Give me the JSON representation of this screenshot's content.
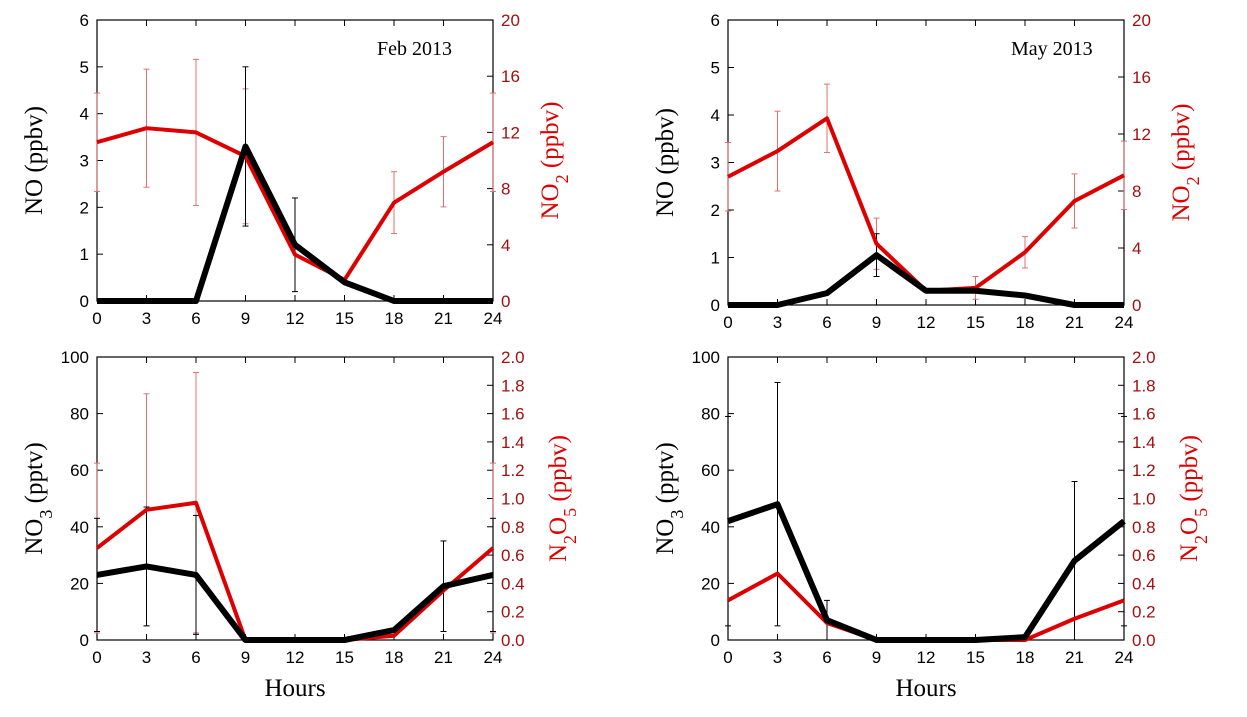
{
  "colors": {
    "axis": "#000000",
    "left_series": "#000000",
    "right_series": "#dd0000",
    "right_axis_text": "#a01010",
    "error_left": "#000000",
    "error_right": "#e07070"
  },
  "chart_data": [
    {
      "type": "line",
      "annotation": "Feb 2013",
      "x": [
        0,
        3,
        6,
        9,
        12,
        15,
        18,
        21,
        24
      ],
      "xticks": [
        "0",
        "3",
        "6",
        "9",
        "12",
        "15",
        "18",
        "21",
        "24"
      ],
      "xlabel": "",
      "xlim": [
        0,
        24
      ],
      "left_axis": {
        "label": "NO (ppbv)",
        "ylim": [
          0,
          6
        ],
        "ticks": [
          "0",
          "1",
          "2",
          "3",
          "4",
          "5",
          "6"
        ]
      },
      "right_axis": {
        "label": "NO2 (ppbv)",
        "ylim": [
          0,
          20
        ],
        "ticks": [
          "0",
          "4",
          "8",
          "12",
          "16",
          "20"
        ]
      },
      "left_series": {
        "values": [
          0,
          0,
          0,
          3.3,
          1.2,
          0.4,
          0,
          0,
          0
        ],
        "errors": [
          0,
          0,
          0,
          1.7,
          1.0,
          0,
          0,
          0,
          0
        ]
      },
      "right_series": {
        "values": [
          11.3,
          12.3,
          12.0,
          10.3,
          3.3,
          1.5,
          7.0,
          9.2,
          11.3
        ],
        "errors": [
          3.5,
          4.2,
          5.2,
          4.8,
          0,
          0,
          2.2,
          2.5,
          3.5
        ]
      },
      "grid": false,
      "legend": "none"
    },
    {
      "type": "line",
      "annotation": "May 2013",
      "x": [
        0,
        3,
        6,
        9,
        12,
        15,
        18,
        21,
        24
      ],
      "xticks": [
        "0",
        "3",
        "6",
        "9",
        "12",
        "15",
        "18",
        "21",
        "24"
      ],
      "xlabel": "",
      "xlim": [
        0,
        24
      ],
      "left_axis": {
        "label": "NO (ppbv)",
        "ylim": [
          0,
          6
        ],
        "ticks": [
          "0",
          "1",
          "2",
          "3",
          "4",
          "5",
          "6"
        ]
      },
      "right_axis": {
        "label": "NO2 (ppbv)",
        "ylim": [
          0,
          20
        ],
        "ticks": [
          "0",
          "4",
          "8",
          "12",
          "16",
          "20"
        ]
      },
      "left_series": {
        "values": [
          0,
          0,
          0.25,
          1.05,
          0.3,
          0.3,
          0.2,
          0,
          0
        ],
        "errors": [
          0,
          0,
          0,
          0.45,
          0,
          0,
          0,
          0,
          0
        ]
      },
      "right_series": {
        "values": [
          9.0,
          10.8,
          13.1,
          4.3,
          1.0,
          1.2,
          3.7,
          7.3,
          9.1
        ],
        "errors": [
          2.4,
          2.8,
          2.4,
          1.8,
          0,
          0.8,
          1.1,
          1.9,
          2.4
        ]
      },
      "grid": false,
      "legend": "none"
    },
    {
      "type": "line",
      "annotation": "",
      "x": [
        0,
        3,
        6,
        9,
        12,
        15,
        18,
        21,
        24
      ],
      "xticks": [
        "0",
        "3",
        "6",
        "9",
        "12",
        "15",
        "18",
        "21",
        "24"
      ],
      "xlabel": "Hours",
      "xlim": [
        0,
        24
      ],
      "left_axis": {
        "label": "NO3 (pptv)",
        "ylim": [
          0,
          100
        ],
        "ticks": [
          "0",
          "20",
          "40",
          "60",
          "80",
          "100"
        ]
      },
      "right_axis": {
        "label": "N2O5 (ppbv)",
        "ylim": [
          0,
          2.0
        ],
        "ticks": [
          "0.0",
          "0.2",
          "0.4",
          "0.6",
          "0.8",
          "1.0",
          "1.2",
          "1.4",
          "1.6",
          "1.8",
          "2.0"
        ]
      },
      "left_series": {
        "values": [
          23,
          26,
          23,
          0,
          0,
          0,
          3.5,
          19,
          23
        ],
        "errors": [
          20,
          21,
          21,
          0,
          0,
          0,
          0,
          16,
          20
        ]
      },
      "right_series": {
        "values": [
          0.65,
          0.92,
          0.97,
          0,
          0,
          0,
          0.03,
          0.35,
          0.65
        ],
        "errors": [
          0.6,
          0.82,
          0.92,
          0,
          0,
          0,
          0,
          0,
          0.6
        ]
      },
      "grid": false,
      "legend": "none"
    },
    {
      "type": "line",
      "annotation": "",
      "x": [
        0,
        3,
        6,
        9,
        12,
        15,
        18,
        21,
        24
      ],
      "xticks": [
        "0",
        "3",
        "6",
        "9",
        "12",
        "15",
        "18",
        "21",
        "24"
      ],
      "xlabel": "Hours",
      "xlim": [
        0,
        24
      ],
      "left_axis": {
        "label": "NO3 (pptv)",
        "ylim": [
          0,
          100
        ],
        "ticks": [
          "0",
          "20",
          "40",
          "60",
          "80",
          "100"
        ]
      },
      "right_axis": {
        "label": "N2O5 (ppbv)",
        "ylim": [
          0,
          2.0
        ],
        "ticks": [
          "0.0",
          "0.2",
          "0.4",
          "0.6",
          "0.8",
          "1.0",
          "1.2",
          "1.4",
          "1.6",
          "1.8",
          "2.0"
        ]
      },
      "left_series": {
        "values": [
          42,
          48,
          7,
          0,
          0,
          0,
          1,
          28,
          42
        ],
        "errors": [
          37,
          43,
          7,
          0,
          0,
          0,
          0,
          28,
          37
        ]
      },
      "right_series": {
        "values": [
          0.28,
          0.47,
          0.12,
          0,
          0,
          0,
          0,
          0.15,
          0.28
        ],
        "errors": [
          0,
          0,
          0,
          0,
          0,
          0,
          0,
          0,
          0
        ]
      },
      "grid": false,
      "legend": "none"
    }
  ]
}
